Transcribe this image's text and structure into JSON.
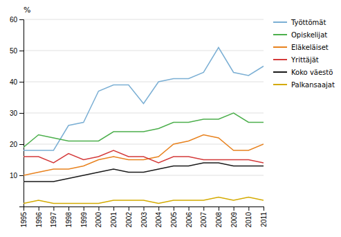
{
  "chart_data": {
    "type": "line",
    "ylabel": "%",
    "x": [
      1995,
      1996,
      1997,
      1998,
      1999,
      2000,
      2001,
      2002,
      2003,
      2004,
      2005,
      2006,
      2007,
      2008,
      2009,
      2010,
      2011
    ],
    "series": [
      {
        "name": "Työttömät",
        "color": "#7bafd4",
        "values": [
          18,
          18,
          18,
          26,
          27,
          37,
          39,
          39,
          33,
          40,
          41,
          41,
          43,
          51,
          43,
          42,
          45
        ]
      },
      {
        "name": "Opiskelijat",
        "color": "#4caf4c",
        "values": [
          19,
          23,
          22,
          21,
          21,
          21,
          24,
          24,
          24,
          25,
          27,
          27,
          28,
          28,
          30,
          27,
          27
        ]
      },
      {
        "name": "Eläkeläiset",
        "color": "#e8821e",
        "values": [
          10,
          11,
          12,
          12,
          13,
          15,
          16,
          15,
          15,
          16,
          20,
          21,
          23,
          22,
          18,
          18,
          20
        ]
      },
      {
        "name": "Yrittäjät",
        "color": "#d43a3a",
        "values": [
          16,
          16,
          14,
          17,
          15,
          16,
          18,
          16,
          16,
          14,
          16,
          16,
          15,
          15,
          15,
          15,
          14
        ]
      },
      {
        "name": "Koko väestö",
        "color": "#1a1a1a",
        "values": [
          8,
          8,
          8,
          9,
          10,
          11,
          12,
          11,
          11,
          12,
          13,
          13,
          14,
          14,
          13,
          13,
          13
        ]
      },
      {
        "name": "Palkansaajat",
        "color": "#d4aa00",
        "values": [
          1,
          2,
          1,
          1,
          1,
          1,
          2,
          2,
          2,
          1,
          2,
          2,
          2,
          3,
          2,
          3,
          2
        ]
      }
    ],
    "xlim": [
      1995,
      2011
    ],
    "xticks": [
      1995,
      1996,
      1997,
      1998,
      1999,
      2000,
      2001,
      2002,
      2003,
      2004,
      2005,
      2006,
      2007,
      2008,
      2009,
      2010,
      2011
    ],
    "ylim": [
      0,
      60
    ],
    "yticks": [
      10,
      20,
      30,
      40,
      50,
      60
    ],
    "grid": true,
    "legend": "right"
  }
}
